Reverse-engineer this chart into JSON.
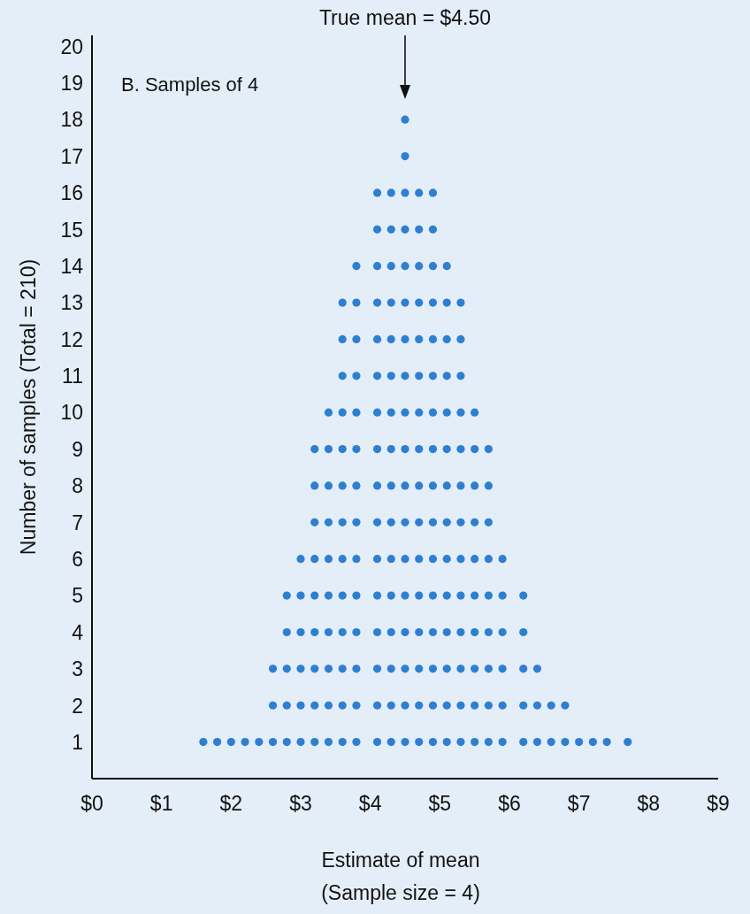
{
  "chart_data": {
    "type": "scatter",
    "title": "B. Samples of 4",
    "xlabel": "Estimate of mean\n(Sample size = 4)",
    "ylabel": "Number of samples (Total = 210)",
    "annotations": [
      {
        "text": "True mean = $4.50",
        "x": 4.5
      }
    ],
    "xlim": [
      0,
      9
    ],
    "xticks": [
      {
        "value": 0,
        "label": "$0"
      },
      {
        "value": 1,
        "label": "$1"
      },
      {
        "value": 2,
        "label": "$2"
      },
      {
        "value": 3,
        "label": "$3"
      },
      {
        "value": 4,
        "label": "$4"
      },
      {
        "value": 5,
        "label": "$5"
      },
      {
        "value": 6,
        "label": "$6"
      },
      {
        "value": 7,
        "label": "$7"
      },
      {
        "value": 8,
        "label": "$8"
      },
      {
        "value": 9,
        "label": "$9"
      }
    ],
    "ylim": [
      0,
      20.3
    ],
    "yticks": [
      1,
      2,
      3,
      4,
      5,
      6,
      7,
      8,
      9,
      10,
      11,
      12,
      13,
      14,
      15,
      16,
      17,
      18,
      19,
      20
    ],
    "series": [
      {
        "color": "#2f7fd0",
        "x": [
          1.6,
          1.8,
          2.0,
          2.2,
          2.4,
          2.6,
          2.8,
          3.0,
          3.2,
          3.4,
          3.6,
          3.8,
          4.1,
          4.3,
          4.5,
          4.7,
          4.9,
          5.1,
          5.3,
          5.5,
          5.7,
          5.9,
          6.2,
          6.4,
          6.6,
          6.8,
          7.0,
          7.2,
          7.4,
          7.7
        ],
        "values": [
          1,
          1,
          1,
          1,
          1,
          1,
          1,
          1,
          1,
          1,
          1,
          1,
          1,
          1,
          1,
          1,
          1,
          1,
          1,
          1,
          1,
          1,
          1,
          1,
          1,
          1,
          1,
          1,
          1,
          1
        ]
      },
      {
        "color": "#2f7fd0",
        "x": [
          2.6,
          2.8,
          3.0,
          3.2,
          3.4,
          3.6,
          3.8,
          4.1,
          4.3,
          4.5,
          4.7,
          4.9,
          5.1,
          5.3,
          5.5,
          5.7,
          5.9,
          6.2,
          6.4,
          6.6,
          6.8
        ],
        "values": [
          2,
          2,
          2,
          2,
          2,
          2,
          2,
          2,
          2,
          2,
          2,
          2,
          2,
          2,
          2,
          2,
          2,
          2,
          2,
          2,
          2
        ]
      },
      {
        "color": "#2f7fd0",
        "x": [
          2.6,
          2.8,
          3.0,
          3.2,
          3.4,
          3.6,
          3.8,
          4.1,
          4.3,
          4.5,
          4.7,
          4.9,
          5.1,
          5.3,
          5.5,
          5.7,
          5.9,
          6.2,
          6.4
        ],
        "values": [
          3,
          3,
          3,
          3,
          3,
          3,
          3,
          3,
          3,
          3,
          3,
          3,
          3,
          3,
          3,
          3,
          3,
          3,
          3
        ]
      },
      {
        "color": "#2f7fd0",
        "x": [
          2.8,
          3.0,
          3.2,
          3.4,
          3.6,
          3.8,
          4.1,
          4.3,
          4.5,
          4.7,
          4.9,
          5.1,
          5.3,
          5.5,
          5.7,
          5.9,
          6.2
        ],
        "values": [
          4,
          4,
          4,
          4,
          4,
          4,
          4,
          4,
          4,
          4,
          4,
          4,
          4,
          4,
          4,
          4,
          4
        ]
      },
      {
        "color": "#2f7fd0",
        "x": [
          2.8,
          3.0,
          3.2,
          3.4,
          3.6,
          3.8,
          4.1,
          4.3,
          4.5,
          4.7,
          4.9,
          5.1,
          5.3,
          5.5,
          5.7,
          5.9,
          6.2
        ],
        "values": [
          5,
          5,
          5,
          5,
          5,
          5,
          5,
          5,
          5,
          5,
          5,
          5,
          5,
          5,
          5,
          5,
          5
        ]
      },
      {
        "color": "#2f7fd0",
        "x": [
          3.0,
          3.2,
          3.4,
          3.6,
          3.8,
          4.1,
          4.3,
          4.5,
          4.7,
          4.9,
          5.1,
          5.3,
          5.5,
          5.7,
          5.9
        ],
        "values": [
          6,
          6,
          6,
          6,
          6,
          6,
          6,
          6,
          6,
          6,
          6,
          6,
          6,
          6,
          6
        ]
      },
      {
        "color": "#2f7fd0",
        "x": [
          3.2,
          3.4,
          3.6,
          3.8,
          4.1,
          4.3,
          4.5,
          4.7,
          4.9,
          5.1,
          5.3,
          5.5,
          5.7
        ],
        "values": [
          7,
          7,
          7,
          7,
          7,
          7,
          7,
          7,
          7,
          7,
          7,
          7,
          7
        ]
      },
      {
        "color": "#2f7fd0",
        "x": [
          3.2,
          3.4,
          3.6,
          3.8,
          4.1,
          4.3,
          4.5,
          4.7,
          4.9,
          5.1,
          5.3,
          5.5,
          5.7
        ],
        "values": [
          8,
          8,
          8,
          8,
          8,
          8,
          8,
          8,
          8,
          8,
          8,
          8,
          8
        ]
      },
      {
        "color": "#2f7fd0",
        "x": [
          3.2,
          3.4,
          3.6,
          3.8,
          4.1,
          4.3,
          4.5,
          4.7,
          4.9,
          5.1,
          5.3,
          5.5,
          5.7
        ],
        "values": [
          9,
          9,
          9,
          9,
          9,
          9,
          9,
          9,
          9,
          9,
          9,
          9,
          9
        ]
      },
      {
        "color": "#2f7fd0",
        "x": [
          3.4,
          3.6,
          3.8,
          4.1,
          4.3,
          4.5,
          4.7,
          4.9,
          5.1,
          5.3,
          5.5
        ],
        "values": [
          10,
          10,
          10,
          10,
          10,
          10,
          10,
          10,
          10,
          10,
          10
        ]
      },
      {
        "color": "#2f7fd0",
        "x": [
          3.6,
          3.8,
          4.1,
          4.3,
          4.5,
          4.7,
          4.9,
          5.1,
          5.3
        ],
        "values": [
          11,
          11,
          11,
          11,
          11,
          11,
          11,
          11,
          11
        ]
      },
      {
        "color": "#2f7fd0",
        "x": [
          3.6,
          3.8,
          4.1,
          4.3,
          4.5,
          4.7,
          4.9,
          5.1,
          5.3
        ],
        "values": [
          12,
          12,
          12,
          12,
          12,
          12,
          12,
          12,
          12
        ]
      },
      {
        "color": "#2f7fd0",
        "x": [
          3.6,
          3.8,
          4.1,
          4.3,
          4.5,
          4.7,
          4.9,
          5.1,
          5.3
        ],
        "values": [
          13,
          13,
          13,
          13,
          13,
          13,
          13,
          13,
          13
        ]
      },
      {
        "color": "#2f7fd0",
        "x": [
          3.8,
          4.1,
          4.3,
          4.5,
          4.7,
          4.9,
          5.1
        ],
        "values": [
          14,
          14,
          14,
          14,
          14,
          14,
          14
        ]
      },
      {
        "color": "#2f7fd0",
        "x": [
          4.1,
          4.3,
          4.5,
          4.7,
          4.9
        ],
        "values": [
          15,
          15,
          15,
          15,
          15
        ]
      },
      {
        "color": "#2f7fd0",
        "x": [
          4.1,
          4.3,
          4.5,
          4.7,
          4.9
        ],
        "values": [
          16,
          16,
          16,
          16,
          16
        ]
      },
      {
        "color": "#2f7fd0",
        "x": [
          4.5
        ],
        "values": [
          17
        ]
      },
      {
        "color": "#2f7fd0",
        "x": [
          4.5
        ],
        "values": [
          18
        ]
      }
    ]
  }
}
